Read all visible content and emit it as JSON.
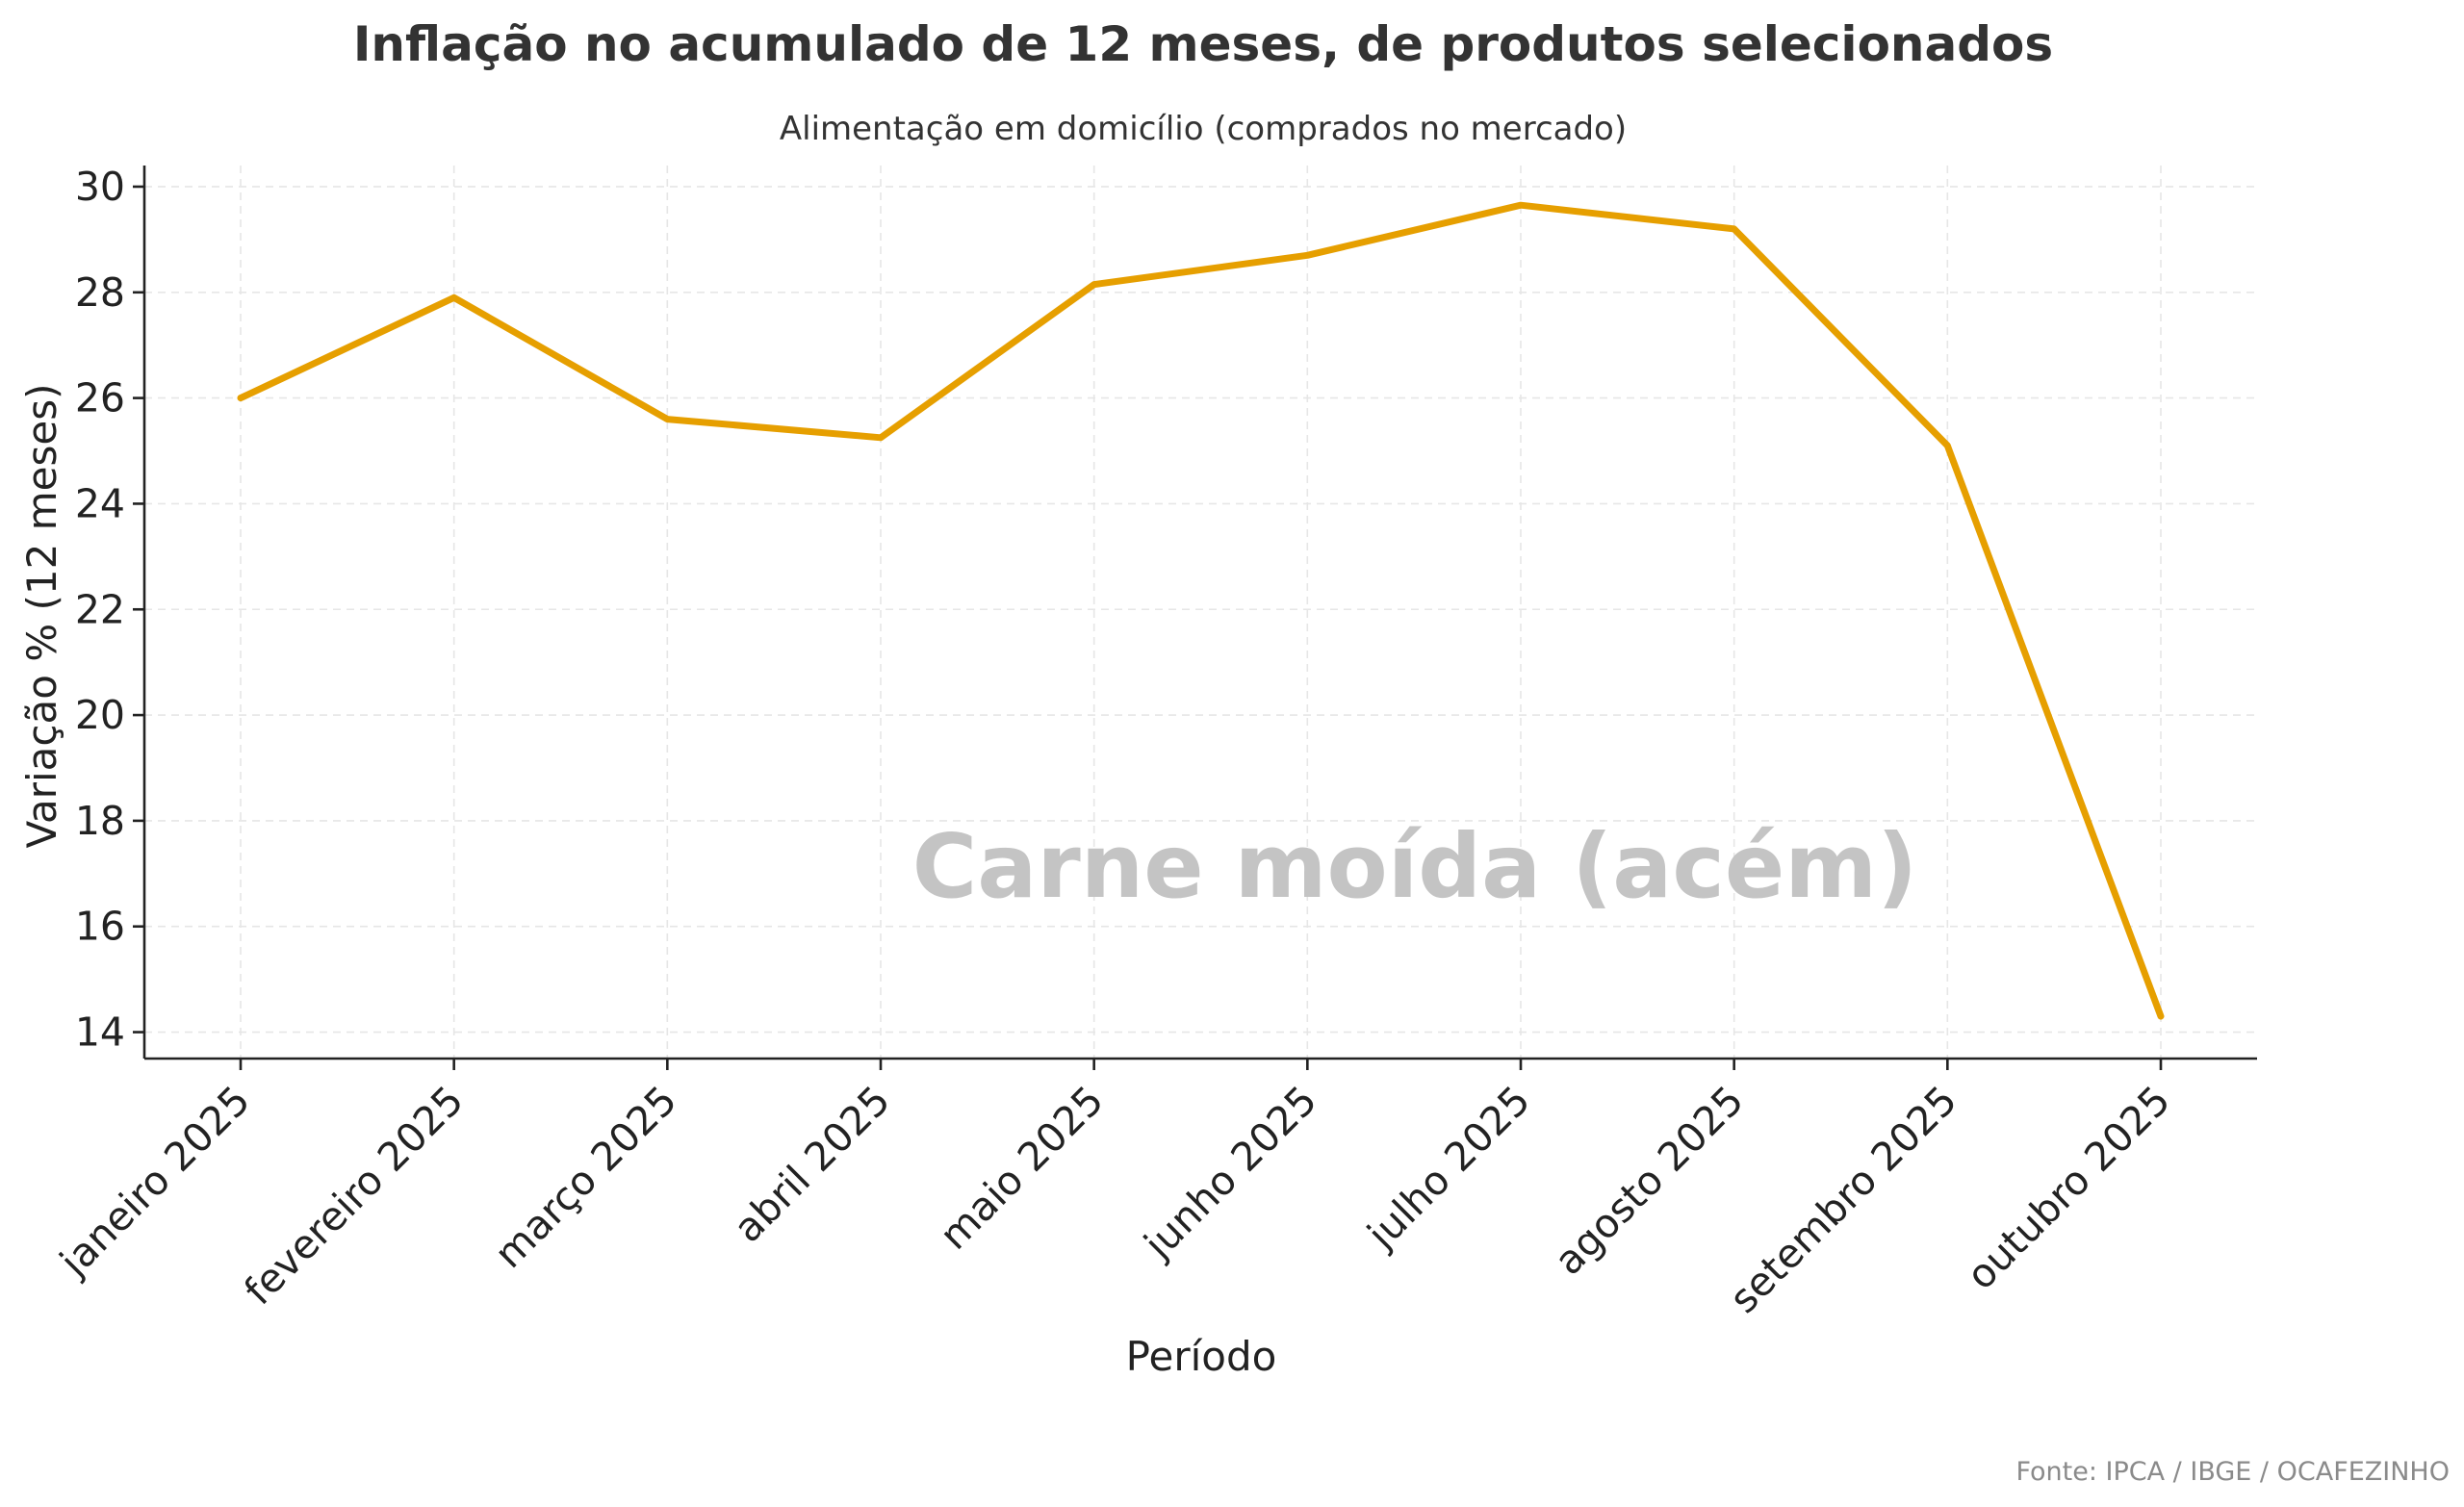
{
  "chart_data": {
    "type": "line",
    "title": "Inflação no acumulado de 12 meses, de produtos selecionados",
    "subtitle": "Alimentação em domicílio (comprados no mercado)",
    "xlabel": "Período",
    "ylabel": "Variação % (12 meses)",
    "categories": [
      "janeiro 2025",
      "fevereiro 2025",
      "março 2025",
      "abril 2025",
      "maio 2025",
      "junho 2025",
      "julho 2025",
      "agosto 2025",
      "setembro 2025",
      "outubro 2025"
    ],
    "series": [
      {
        "values": [
          26.0,
          27.9,
          25.6,
          25.25,
          28.15,
          28.7,
          29.65,
          29.2,
          25.1,
          14.3
        ],
        "color": "#E69F00"
      }
    ],
    "yticks": [
      14,
      16,
      18,
      20,
      22,
      24,
      26,
      28,
      30
    ],
    "ylim": [
      13.5,
      30.4
    ],
    "grid": true,
    "annotation": "Carne moída (acém)",
    "source": "Fonte: IPCA / IBGE / OCAFEZINHO"
  }
}
